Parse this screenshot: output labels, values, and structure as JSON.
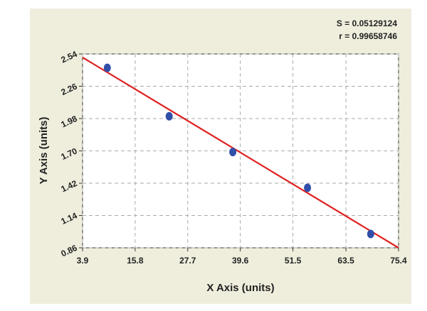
{
  "chart_data": {
    "type": "scatter",
    "x_label": "X Axis (units)",
    "y_label": "Y Axis (units)",
    "annotations": [
      "S = 0.05129124",
      "r = 0.99658746"
    ],
    "points": {
      "color": "#2f4fa8",
      "x": [
        9.5,
        23.5,
        37.9,
        54.8,
        69.1
      ],
      "values": [
        2.42,
        2.0,
        1.69,
        1.38,
        0.98
      ]
    },
    "fit_line": {
      "color": "#e02020",
      "x": [
        3.9,
        75.4
      ],
      "values": [
        2.51,
        0.86
      ]
    },
    "xlim": [
      3.9,
      75.4
    ],
    "xticks": [
      3.9,
      15.8,
      27.7,
      39.6,
      51.5,
      63.5,
      75.4
    ],
    "ylim": [
      0.86,
      2.54
    ],
    "yticks": [
      0.86,
      1.14,
      1.42,
      {
        "value": 1.7,
        "label": "1.70"
      },
      1.98,
      2.26,
      2.54
    ],
    "grid": true
  }
}
